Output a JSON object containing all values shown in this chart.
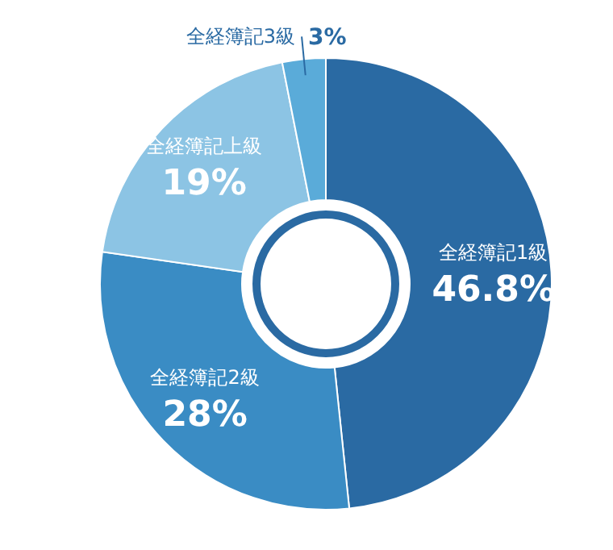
{
  "chart_data": {
    "type": "donut",
    "categories": [
      "全経簿記1級",
      "全経簿記2級",
      "全経簿記上級",
      "全経簿記3級"
    ],
    "values": [
      46.8,
      28,
      19,
      3
    ],
    "value_labels": [
      "46.8%",
      "28%",
      "19%",
      "3%"
    ],
    "colors": [
      "#2a6aa3",
      "#3a8cc4",
      "#8cc4e4",
      "#5aabd9"
    ]
  }
}
